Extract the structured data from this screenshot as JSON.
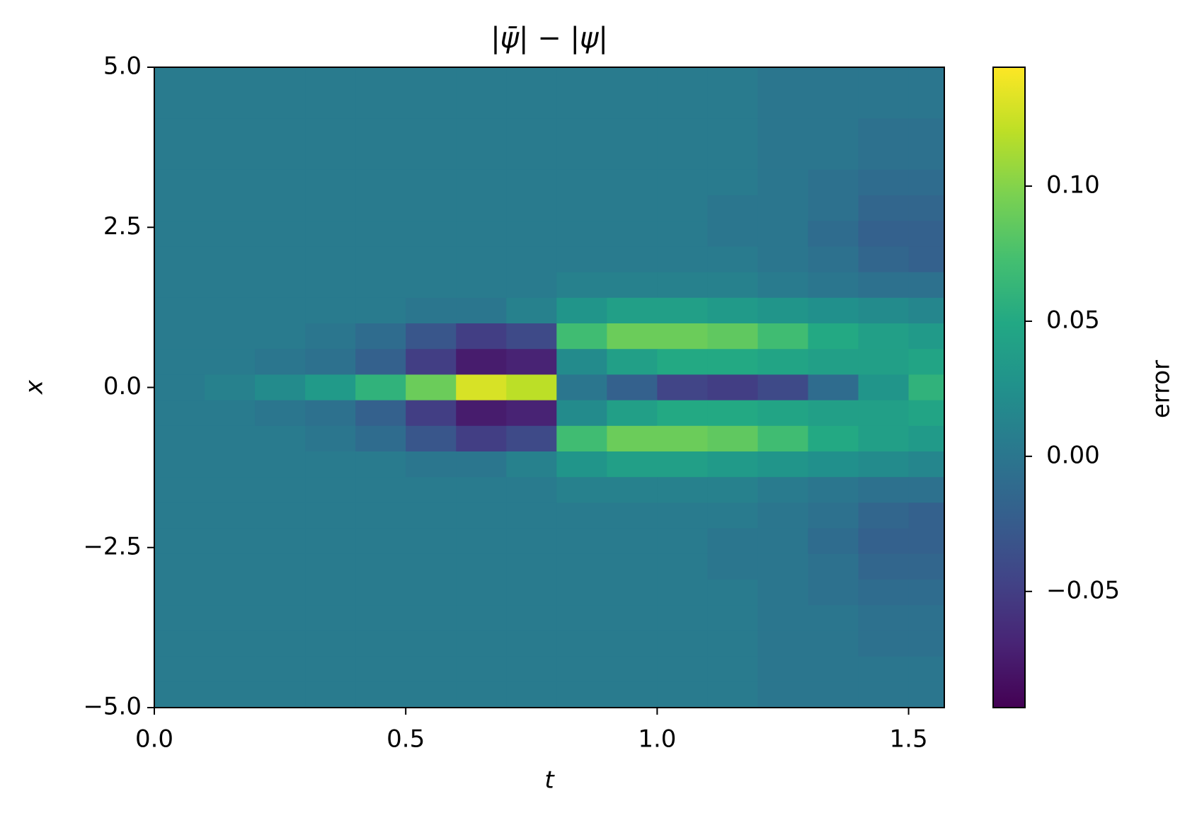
{
  "chart_data": {
    "type": "heatmap",
    "title": "|ψ̄| − |ψ|",
    "x_label": "t",
    "y_label": "x",
    "colorbar_label": "error",
    "colormap": "viridis",
    "xlim": [
      0,
      1.571
    ],
    "ylim": [
      -5,
      5
    ],
    "clim": [
      -0.093,
      0.144
    ],
    "xticks": [
      {
        "value": 0,
        "label": "0.0"
      },
      {
        "value": 0.5,
        "label": "0.5"
      },
      {
        "value": 1,
        "label": "1.0"
      },
      {
        "value": 1.5,
        "label": "1.5"
      }
    ],
    "yticks": [
      {
        "value": 5,
        "label": "5.0"
      },
      {
        "value": 2.5,
        "label": "2.5"
      },
      {
        "value": 0,
        "label": "0.0"
      },
      {
        "value": -2.5,
        "label": "−2.5"
      },
      {
        "value": -5,
        "label": "−5.0"
      }
    ],
    "cticks": [
      {
        "value": 0.1,
        "label": "0.10"
      },
      {
        "value": 0.05,
        "label": "0.05"
      },
      {
        "value": 0,
        "label": "0.00"
      },
      {
        "value": -0.05,
        "label": "−0.05"
      }
    ],
    "x": [
      0.05,
      0.15,
      0.25,
      0.35,
      0.45,
      0.55,
      0.65,
      0.75,
      0.85,
      0.95,
      1.05,
      1.15,
      1.25,
      1.35,
      1.45,
      1.55
    ],
    "y": [
      4.8,
      4.4,
      4.0,
      3.6,
      3.2,
      2.8,
      2.4,
      2.0,
      1.6,
      1.2,
      0.8,
      0.4,
      0,
      -0.4,
      -0.8,
      -1.2,
      -1.6,
      -2.0,
      -2.4,
      -2.8,
      -3.2,
      -3.6,
      -4.0,
      -4.4,
      -4.8
    ],
    "z": [
      [
        0.005,
        0.005,
        0.005,
        0.005,
        0.005,
        0.005,
        0.005,
        0.005,
        0.005,
        0.005,
        0.005,
        0.005,
        0,
        0,
        0,
        0
      ],
      [
        0.005,
        0.005,
        0.005,
        0.005,
        0.005,
        0.005,
        0.005,
        0.005,
        0.005,
        0.005,
        0.005,
        0.005,
        0,
        0,
        0,
        0
      ],
      [
        0.005,
        0.005,
        0.005,
        0.005,
        0.005,
        0.005,
        0.005,
        0.005,
        0.005,
        0.005,
        0.005,
        0.005,
        0,
        0,
        -0.005,
        -0.005
      ],
      [
        0.005,
        0.005,
        0.005,
        0.005,
        0.005,
        0.005,
        0.005,
        0.005,
        0.005,
        0.005,
        0.005,
        0.005,
        0,
        0,
        -0.005,
        -0.005
      ],
      [
        0.005,
        0.005,
        0.005,
        0.005,
        0.005,
        0.005,
        0.005,
        0.005,
        0.005,
        0.005,
        0.005,
        0.005,
        0,
        -0.005,
        -0.01,
        -0.01
      ],
      [
        0.005,
        0.005,
        0.005,
        0.005,
        0.005,
        0.005,
        0.005,
        0.005,
        0.005,
        0.005,
        0.005,
        0,
        0,
        -0.005,
        -0.015,
        -0.015
      ],
      [
        0.005,
        0.005,
        0.005,
        0.005,
        0.005,
        0.005,
        0.005,
        0.005,
        0.005,
        0.005,
        0.005,
        0,
        0,
        -0.01,
        -0.02,
        -0.02
      ],
      [
        0.005,
        0.005,
        0.005,
        0.005,
        0.005,
        0.005,
        0.005,
        0.005,
        0.005,
        0.005,
        0.005,
        0.005,
        0,
        -0.005,
        -0.015,
        -0.02
      ],
      [
        0.005,
        0.005,
        0.005,
        0.005,
        0.005,
        0.005,
        0.005,
        0.005,
        0.01,
        0.01,
        0.01,
        0.01,
        0.005,
        0,
        -0.005,
        -0.005
      ],
      [
        0.005,
        0.005,
        0.005,
        0.005,
        0.005,
        0,
        0,
        0.01,
        0.03,
        0.04,
        0.04,
        0.035,
        0.03,
        0.025,
        0.02,
        0.015
      ],
      [
        0.005,
        0.005,
        0.005,
        0,
        -0.01,
        -0.03,
        -0.05,
        -0.04,
        0.07,
        0.09,
        0.09,
        0.085,
        0.07,
        0.05,
        0.04,
        0.035
      ],
      [
        0.005,
        0.005,
        0,
        -0.005,
        -0.02,
        -0.05,
        -0.075,
        -0.07,
        0.02,
        0.04,
        0.05,
        0.05,
        0.045,
        0.04,
        0.04,
        0.045
      ],
      [
        0.005,
        0.01,
        0.02,
        0.035,
        0.06,
        0.09,
        0.13,
        0.12,
        0,
        -0.02,
        -0.045,
        -0.05,
        -0.04,
        -0.01,
        0.03,
        0.06
      ],
      [
        0.005,
        0.005,
        0,
        -0.005,
        -0.02,
        -0.05,
        -0.075,
        -0.07,
        0.02,
        0.04,
        0.05,
        0.05,
        0.045,
        0.04,
        0.04,
        0.045
      ],
      [
        0.005,
        0.005,
        0.005,
        0,
        -0.01,
        -0.03,
        -0.05,
        -0.04,
        0.07,
        0.09,
        0.09,
        0.085,
        0.07,
        0.05,
        0.04,
        0.035
      ],
      [
        0.005,
        0.005,
        0.005,
        0.005,
        0.005,
        0,
        0,
        0.01,
        0.03,
        0.04,
        0.04,
        0.035,
        0.03,
        0.025,
        0.02,
        0.015
      ],
      [
        0.005,
        0.005,
        0.005,
        0.005,
        0.005,
        0.005,
        0.005,
        0.005,
        0.01,
        0.01,
        0.01,
        0.01,
        0.005,
        0,
        -0.005,
        -0.005
      ],
      [
        0.005,
        0.005,
        0.005,
        0.005,
        0.005,
        0.005,
        0.005,
        0.005,
        0.005,
        0.005,
        0.005,
        0.005,
        0,
        -0.005,
        -0.015,
        -0.02
      ],
      [
        0.005,
        0.005,
        0.005,
        0.005,
        0.005,
        0.005,
        0.005,
        0.005,
        0.005,
        0.005,
        0.005,
        0,
        0,
        -0.01,
        -0.02,
        -0.02
      ],
      [
        0.005,
        0.005,
        0.005,
        0.005,
        0.005,
        0.005,
        0.005,
        0.005,
        0.005,
        0.005,
        0.005,
        0,
        0,
        -0.005,
        -0.015,
        -0.015
      ],
      [
        0.005,
        0.005,
        0.005,
        0.005,
        0.005,
        0.005,
        0.005,
        0.005,
        0.005,
        0.005,
        0.005,
        0.005,
        0,
        -0.005,
        -0.01,
        -0.01
      ],
      [
        0.005,
        0.005,
        0.005,
        0.005,
        0.005,
        0.005,
        0.005,
        0.005,
        0.005,
        0.005,
        0.005,
        0.005,
        0,
        0,
        -0.005,
        -0.005
      ],
      [
        0.005,
        0.005,
        0.005,
        0.005,
        0.005,
        0.005,
        0.005,
        0.005,
        0.005,
        0.005,
        0.005,
        0.005,
        0,
        0,
        -0.005,
        -0.005
      ],
      [
        0.005,
        0.005,
        0.005,
        0.005,
        0.005,
        0.005,
        0.005,
        0.005,
        0.005,
        0.005,
        0.005,
        0.005,
        0,
        0,
        0,
        0
      ],
      [
        0.005,
        0.005,
        0.005,
        0.005,
        0.005,
        0.005,
        0.005,
        0.005,
        0.005,
        0.005,
        0.005,
        0.005,
        0,
        0,
        0,
        0
      ]
    ]
  }
}
